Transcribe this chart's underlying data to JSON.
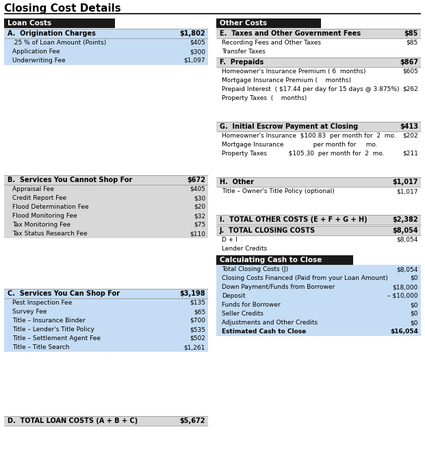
{
  "title": "Closing Cost Details",
  "bg_color": "#ffffff",
  "header_bg": "#1a1a1a",
  "header_fg": "#ffffff",
  "blue_bg": "#c5ddf4",
  "gray_bg": "#d8d8d8",
  "white_bg": "#ffffff",
  "loan_header": "Loan Costs",
  "other_header": "Other Costs",
  "calc_header": "Calculating Cash to Close",
  "section_a_label": "A.  Origination Charges",
  "section_a_amount": "$1,802",
  "section_a_items": [
    [
      ".25 % of Loan Amount (Points)",
      "$405"
    ],
    [
      "Application Fee",
      "$300"
    ],
    [
      "Underwriting Fee",
      "$1,097"
    ]
  ],
  "section_b_label": "B.  Services You Cannot Shop For",
  "section_b_amount": "$672",
  "section_b_items": [
    [
      "Appraisal Fee",
      "$405"
    ],
    [
      "Credit Report Fee",
      "$30"
    ],
    [
      "Flood Determination Fee",
      "$20"
    ],
    [
      "Flood Monitoring Fee",
      "$32"
    ],
    [
      "Tax Monitoring Fee",
      "$75"
    ],
    [
      "Tax Status Research Fee",
      "$110"
    ]
  ],
  "section_c_label": "C.  Services You Can Shop For",
  "section_c_amount": "$3,198",
  "section_c_items": [
    [
      "Pest Inspection Fee",
      "$135"
    ],
    [
      "Survey Fee",
      "$65"
    ],
    [
      "Title – Insurance Binder",
      "$700"
    ],
    [
      "Title – Lender's Title Policy",
      "$535"
    ],
    [
      "Title – Settlement Agent Fee",
      "$502"
    ],
    [
      "Title – Title Search",
      "$1,261"
    ]
  ],
  "section_d_label": "D.  TOTAL LOAN COSTS (A + B + C)",
  "section_d_amount": "$5,672",
  "section_e_label": "E.  Taxes and Other Government Fees",
  "section_e_amount": "$85",
  "section_e_items": [
    [
      "Recording Fees and Other Taxes",
      "$85"
    ],
    [
      "Transfer Taxes",
      ""
    ]
  ],
  "section_f_label": "F.  Prepaids",
  "section_f_amount": "$867",
  "section_f_items": [
    [
      "Homeowner's Insurance Premium ( 6  months)",
      "$605"
    ],
    [
      "Mortgage Insurance Premium (    months)",
      ""
    ],
    [
      "Prepaid Interest  ( $17.44 per day for 15 days @ 3.875%)",
      "$262"
    ],
    [
      "Property Taxes  (    months)",
      ""
    ]
  ],
  "section_g_label": "G.  Initial Escrow Payment at Closing",
  "section_g_amount": "$413",
  "section_g_items": [
    [
      "Homeowner's Insurance  $100.83  per month for  2  mo.",
      "$202"
    ],
    [
      "Mortgage Insurance               per month for     mo.",
      ""
    ],
    [
      "Property Taxes           $105.30  per month for  2  mo.",
      "$211"
    ]
  ],
  "section_h_label": "H.  Other",
  "section_h_amount": "$1,017",
  "section_h_items": [
    [
      "Title – Owner's Title Policy (optional)",
      "$1,017"
    ]
  ],
  "section_i_label": "I.  TOTAL OTHER COSTS (E + F + G + H)",
  "section_i_amount": "$2,382",
  "section_j_label": "J.  TOTAL CLOSING COSTS",
  "section_j_amount": "$8,054",
  "section_j_items": [
    [
      "D + I",
      "$8,054"
    ],
    [
      "Lender Credits",
      ""
    ]
  ],
  "calc_items": [
    [
      "Total Closing Costs (J)",
      "$8,054"
    ],
    [
      "Closing Costs Financed (Paid from your Loan Amount)",
      "$0"
    ],
    [
      "Down Payment/Funds from Borrower",
      "$18,000"
    ],
    [
      "Deposit",
      "– $10,000"
    ],
    [
      "Funds for Borrower",
      "$0"
    ],
    [
      "Seller Credits",
      "$0"
    ],
    [
      "Adjustments and Other Credits",
      "$0"
    ],
    [
      "Estimated Cash to Close",
      "$16,054"
    ]
  ]
}
